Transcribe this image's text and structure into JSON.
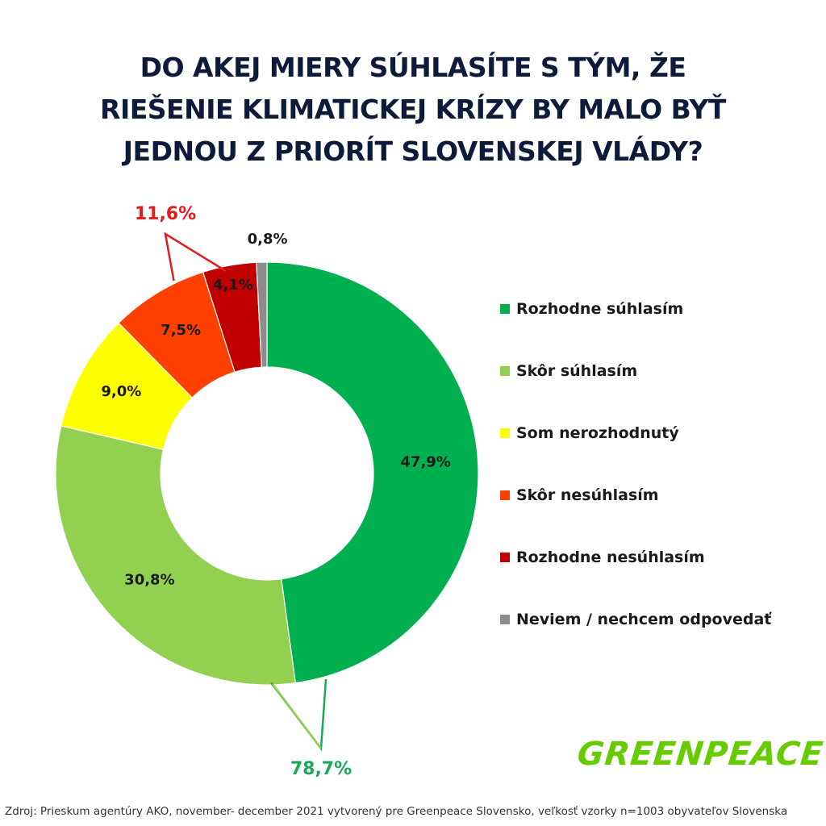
{
  "title_lines": [
    "DO AKEJ MIERY SÚHLASÍTE S TÝM, ŽE",
    "RIEŠENIE KLIMATICKEJ KRÍZY BY MALO BYŤ",
    "JEDNOU Z PRIORÍT SLOVENSKEJ VLÁDY?"
  ],
  "chart_data": {
    "type": "pie",
    "title": "DO AKEJ MIERY SÚHLASÍTE S TÝM, ŽE RIEŠENIE KLIMATICKEJ KRÍZY BY MALO BYŤ JEDNOU Z PRIORÍT SLOVENSKEJ VLÁDY?",
    "donut": true,
    "legend_position": "right",
    "categories": [
      "Rozhodne súhlasím",
      "Skôr súhlasím",
      "Som nerozhodnutý",
      "Skôr nesúhlasím",
      "Rozhodne nesúhlasím",
      "Neviem / nechcem odpovedať"
    ],
    "values": [
      47.9,
      30.8,
      9.0,
      7.5,
      4.1,
      0.8
    ],
    "data_labels": [
      "47,9%",
      "30,8%",
      "9,0%",
      "7,5%",
      "4,1%",
      "0,8%"
    ],
    "colors": [
      "#00b050",
      "#92d050",
      "#ffff00",
      "#ff4000",
      "#c00000",
      "#8c8c8c"
    ],
    "annotations": [
      {
        "text": "78,7%",
        "covers": [
          "Rozhodne súhlasím",
          "Skôr súhlasím"
        ],
        "color": "#1aa85a"
      },
      {
        "text": "11,6%",
        "covers": [
          "Skôr nesúhlasím",
          "Rozhodne nesúhlasím"
        ],
        "color": "#e31b1b"
      }
    ]
  },
  "logo_text": "GREENPEACE",
  "source": "Zdroj: Prieskum agentúry AKO, november- december 2021 vytvorený pre Greenpeace Slovensko, veľkosť vzorky n=1003 obyvateľov Slovenska"
}
